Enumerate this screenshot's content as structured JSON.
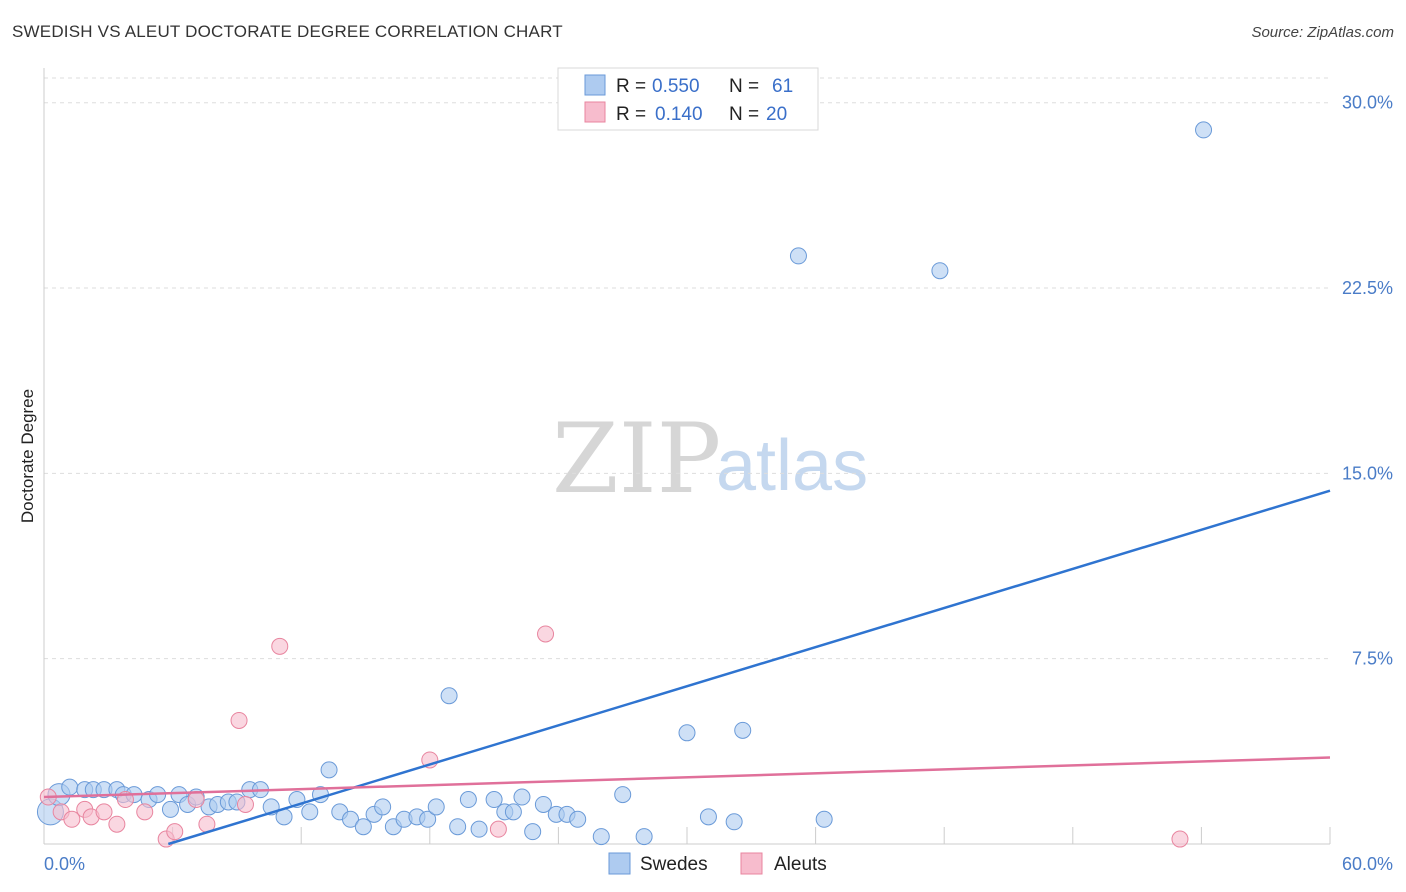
{
  "title": "SWEDISH VS ALEUT DOCTORATE DEGREE CORRELATION CHART",
  "source": "Source: ZipAtlas.com",
  "watermark": {
    "zip": "ZIP",
    "atlas": "atlas"
  },
  "legend": {
    "r_label": "R =",
    "n_label": "N =",
    "rows": [
      {
        "r": "0.550",
        "n": "61"
      },
      {
        "r": "0.140",
        "n": "20"
      }
    ]
  },
  "bottom_legend": [
    "Swedes",
    "Aleuts"
  ],
  "colors": {
    "swedes_fill": "#aecbf0",
    "swedes_stroke": "#6a9ad8",
    "swedes_line": "#2f74d0",
    "aleuts_fill": "#f7bccd",
    "aleuts_stroke": "#e8859f",
    "aleuts_line": "#e0709a",
    "tick_text": "#4a7cc7",
    "grid": "#dddddd"
  },
  "chart_data": {
    "type": "scatter",
    "ylabel": "Doctorate Degree",
    "xlim": [
      0,
      60
    ],
    "ylim": [
      0,
      31
    ],
    "x_ticks": [
      0,
      6,
      12,
      18,
      24,
      30,
      36,
      42,
      48,
      54,
      60
    ],
    "x_tick_labels": [
      {
        "value": 0,
        "label": "0.0%"
      },
      {
        "value": 60,
        "label": "60.0%"
      }
    ],
    "y_ticks": [
      {
        "value": 7.5,
        "label": "7.5%"
      },
      {
        "value": 15.0,
        "label": "15.0%"
      },
      {
        "value": 22.5,
        "label": "22.5%"
      },
      {
        "value": 30.0,
        "label": "30.0%"
      }
    ],
    "grid": "horizontal dashed",
    "series": [
      {
        "name": "Swedes",
        "r": 0.55,
        "n": 61,
        "trend": [
          [
            5.8,
            0.0
          ],
          [
            60,
            14.3
          ]
        ],
        "points": [
          [
            0.3,
            1.3
          ],
          [
            0.7,
            2.0
          ],
          [
            1.2,
            2.3
          ],
          [
            1.9,
            2.2
          ],
          [
            2.3,
            2.2
          ],
          [
            2.8,
            2.2
          ],
          [
            3.4,
            2.2
          ],
          [
            3.7,
            2.0
          ],
          [
            4.2,
            2.0
          ],
          [
            4.9,
            1.8
          ],
          [
            5.3,
            2.0
          ],
          [
            5.9,
            1.4
          ],
          [
            6.3,
            2.0
          ],
          [
            6.7,
            1.6
          ],
          [
            7.1,
            1.9
          ],
          [
            7.7,
            1.5
          ],
          [
            8.1,
            1.6
          ],
          [
            8.6,
            1.7
          ],
          [
            9.0,
            1.7
          ],
          [
            9.6,
            2.2
          ],
          [
            10.1,
            2.2
          ],
          [
            10.6,
            1.5
          ],
          [
            11.2,
            1.1
          ],
          [
            11.8,
            1.8
          ],
          [
            12.4,
            1.3
          ],
          [
            12.9,
            2.0
          ],
          [
            13.3,
            3.0
          ],
          [
            13.8,
            1.3
          ],
          [
            14.3,
            1.0
          ],
          [
            14.9,
            0.7
          ],
          [
            15.4,
            1.2
          ],
          [
            15.8,
            1.5
          ],
          [
            16.3,
            0.7
          ],
          [
            16.8,
            1.0
          ],
          [
            17.4,
            1.1
          ],
          [
            17.9,
            1.0
          ],
          [
            18.3,
            1.5
          ],
          [
            18.9,
            6.0
          ],
          [
            19.3,
            0.7
          ],
          [
            19.8,
            1.8
          ],
          [
            20.3,
            0.6
          ],
          [
            21.0,
            1.8
          ],
          [
            21.5,
            1.3
          ],
          [
            21.9,
            1.3
          ],
          [
            22.3,
            1.9
          ],
          [
            22.8,
            0.5
          ],
          [
            23.3,
            1.6
          ],
          [
            23.9,
            1.2
          ],
          [
            24.4,
            1.2
          ],
          [
            24.9,
            1.0
          ],
          [
            26.0,
            0.3
          ],
          [
            27.0,
            2.0
          ],
          [
            28.0,
            0.3
          ],
          [
            30.0,
            4.5
          ],
          [
            31.0,
            1.1
          ],
          [
            32.2,
            0.9
          ],
          [
            32.6,
            4.6
          ],
          [
            35.2,
            23.8
          ],
          [
            36.4,
            1.0
          ],
          [
            41.8,
            23.2
          ],
          [
            54.1,
            28.9
          ]
        ]
      },
      {
        "name": "Aleuts",
        "r": 0.14,
        "n": 20,
        "trend": [
          [
            0,
            1.9
          ],
          [
            60,
            3.5
          ]
        ],
        "points": [
          [
            0.2,
            1.9
          ],
          [
            0.8,
            1.3
          ],
          [
            1.3,
            1.0
          ],
          [
            1.9,
            1.4
          ],
          [
            2.2,
            1.1
          ],
          [
            2.8,
            1.3
          ],
          [
            3.4,
            0.8
          ],
          [
            3.8,
            1.8
          ],
          [
            4.7,
            1.3
          ],
          [
            5.7,
            0.2
          ],
          [
            6.1,
            0.5
          ],
          [
            7.1,
            1.8
          ],
          [
            7.6,
            0.8
          ],
          [
            9.1,
            5.0
          ],
          [
            9.4,
            1.6
          ],
          [
            11.0,
            8.0
          ],
          [
            18.0,
            3.4
          ],
          [
            21.2,
            0.6
          ],
          [
            23.4,
            8.5
          ],
          [
            53.0,
            0.2
          ]
        ]
      }
    ]
  }
}
